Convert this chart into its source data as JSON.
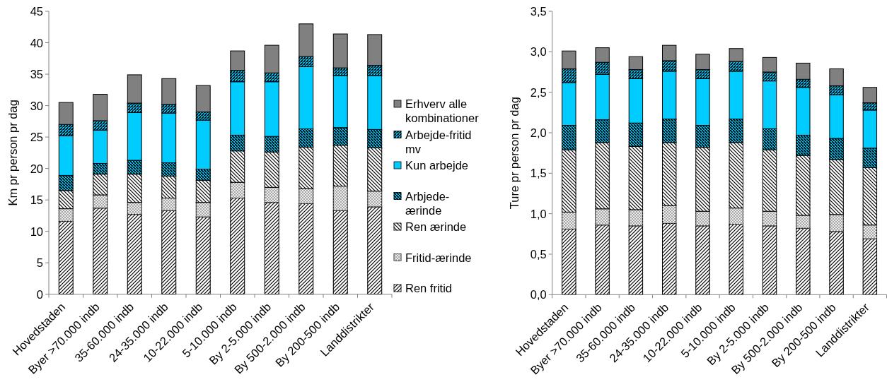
{
  "chart_data": [
    {
      "type": "bar",
      "stacked": true,
      "ylabel": "Km pr person pr dag",
      "categories": [
        "Hovedstaden",
        "Byer >70.000 indb",
        "35-60.000 indb",
        "24-35.000 indb",
        "10-22.000 indb",
        "5-10.000 indb",
        "By 2-5.000 indb",
        "By 500-2.000 indb",
        "By 200-500 indb",
        "Landdistrikter"
      ],
      "ylim": [
        0,
        45
      ],
      "yticks": [
        0,
        5,
        10,
        15,
        20,
        25,
        30,
        35,
        40,
        45
      ],
      "legend": "right",
      "series": [
        {
          "name": "Ren fritid",
          "color": "#ffffff",
          "values": [
            11.6,
            13.7,
            12.7,
            13.3,
            12.3,
            15.3,
            14.6,
            14.4,
            13.3,
            13.9
          ]
        },
        {
          "name": "Fritid-ærinde",
          "color": "#ececec",
          "values": [
            2.0,
            2.1,
            1.9,
            2.0,
            2.3,
            2.5,
            2.4,
            2.4,
            3.9,
            2.5
          ]
        },
        {
          "name": "Ren ærinde",
          "color": "#ffffff",
          "values": [
            2.9,
            3.3,
            4.5,
            3.5,
            3.5,
            5.0,
            5.6,
            6.6,
            6.5,
            6.9
          ]
        },
        {
          "name": "Arbjede-ærinde",
          "color": "#00ccff",
          "values": [
            2.4,
            1.7,
            2.2,
            2.1,
            1.8,
            2.5,
            2.5,
            2.9,
            2.8,
            2.9
          ]
        },
        {
          "name": "Kun arbejde",
          "color": "#00ccff",
          "values": [
            6.3,
            5.3,
            7.6,
            7.9,
            7.8,
            8.5,
            8.7,
            9.9,
            8.3,
            8.6
          ]
        },
        {
          "name": "Arbejde-fritid mv",
          "color": "#00ccff",
          "values": [
            1.8,
            1.5,
            1.5,
            1.4,
            1.3,
            1.8,
            1.4,
            1.6,
            1.2,
            1.6
          ]
        },
        {
          "name": "Erhverv alle kombinationer",
          "color": "#808080",
          "values": [
            3.5,
            4.2,
            4.5,
            4.1,
            4.2,
            3.1,
            4.4,
            5.2,
            5.4,
            4.9
          ]
        }
      ]
    },
    {
      "type": "bar",
      "stacked": true,
      "ylabel": "Ture pr person pr dag",
      "categories": [
        "Hovedstaden",
        "Byer >70.000 indb",
        "35-60.000 indb",
        "24-35.000 indb",
        "10-22.000 indb",
        "5-10.000 indb",
        "By 2-5.000 indb",
        "By 500-2.000 indb",
        "By 200-500 indb",
        "Landdistrikter"
      ],
      "ylim": [
        0,
        3.5
      ],
      "yticks": [
        {
          "value": 0,
          "label": "0,0"
        },
        {
          "value": 0.5,
          "label": "0,5"
        },
        {
          "value": 1,
          "label": "1,0"
        },
        {
          "value": 1.5,
          "label": "1,5"
        },
        {
          "value": 2,
          "label": "2,0"
        },
        {
          "value": 2.5,
          "label": "2,5"
        },
        {
          "value": 3,
          "label": "3,0"
        },
        {
          "value": 3.5,
          "label": "3,5"
        }
      ],
      "series": [
        {
          "color": "#ffffff",
          "values": [
            0.81,
            0.86,
            0.85,
            0.88,
            0.85,
            0.87,
            0.85,
            0.82,
            0.78,
            0.69
          ]
        },
        {
          "color": "#ececec",
          "values": [
            0.21,
            0.2,
            0.2,
            0.22,
            0.18,
            0.2,
            0.18,
            0.16,
            0.21,
            0.17
          ]
        },
        {
          "color": "#ffffff",
          "values": [
            0.77,
            0.82,
            0.78,
            0.78,
            0.79,
            0.81,
            0.76,
            0.74,
            0.68,
            0.71
          ]
        },
        {
          "color": "#00ccff",
          "values": [
            0.3,
            0.28,
            0.29,
            0.29,
            0.27,
            0.29,
            0.26,
            0.25,
            0.26,
            0.24
          ]
        },
        {
          "color": "#00ccff",
          "values": [
            0.53,
            0.56,
            0.55,
            0.59,
            0.58,
            0.59,
            0.59,
            0.59,
            0.54,
            0.47
          ]
        },
        {
          "color": "#00ccff",
          "values": [
            0.17,
            0.15,
            0.11,
            0.13,
            0.11,
            0.12,
            0.11,
            0.1,
            0.11,
            0.09
          ]
        },
        {
          "color": "#808080",
          "values": [
            0.22,
            0.18,
            0.16,
            0.19,
            0.19,
            0.16,
            0.18,
            0.2,
            0.21,
            0.19
          ]
        }
      ]
    }
  ]
}
